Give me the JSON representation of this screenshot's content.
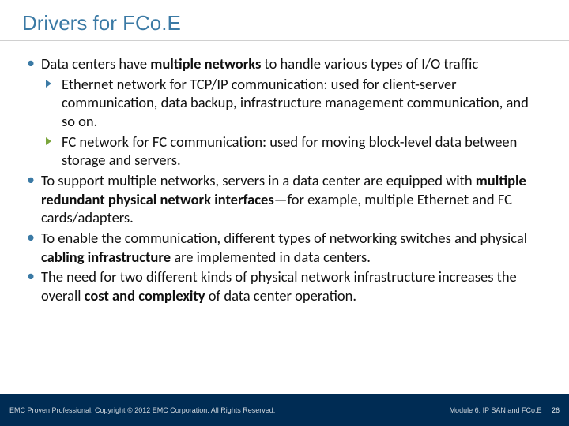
{
  "title": "Drivers for FCo.E",
  "colors": {
    "title": "#3b7aa5",
    "bullet_primary": "#3b7aa5",
    "sub_arrow_blue": "#3b7aa5",
    "sub_arrow_green": "#7aa53b",
    "footer_bg": "#002c54",
    "footer_text": "#cfd6dd",
    "body_text": "#111111",
    "divider": "#d0d0d0"
  },
  "typography": {
    "title_fontsize": 26,
    "body_fontsize": 18.5,
    "footer_fontsize": 9
  },
  "bullets": [
    {
      "runs": [
        {
          "t": "Data centers have "
        },
        {
          "t": "multiple networks",
          "b": true
        },
        {
          "t": " to handle various types of I/O traffic"
        }
      ],
      "sub": [
        {
          "color": "blue",
          "runs": [
            {
              "t": "Ethernet network for TCP/IP communication: used for client-server communication, data backup, infrastructure management communication, and so on."
            }
          ]
        },
        {
          "color": "green",
          "runs": [
            {
              "t": "FC network for FC communication: used for moving block-level data between storage and servers."
            }
          ]
        }
      ]
    },
    {
      "runs": [
        {
          "t": "To support multiple networks, servers in a data center are equipped with "
        },
        {
          "t": "multiple redundant physical network interfaces",
          "b": true
        },
        {
          "t": "—for example, multiple Ethernet and FC cards/adapters."
        }
      ]
    },
    {
      "runs": [
        {
          "t": "To enable the communication, different types of networking switches and physical "
        },
        {
          "t": "cabling infrastructure",
          "b": true
        },
        {
          "t": " are implemented in data centers."
        }
      ]
    },
    {
      "runs": [
        {
          "t": "The need for two different kinds of physical network infrastructure increases the overall "
        },
        {
          "t": "cost and complexity",
          "b": true
        },
        {
          "t": " of data center operation."
        }
      ]
    }
  ],
  "footer": {
    "left": "EMC Proven Professional. Copyright © 2012 EMC Corporation. All Rights Reserved.",
    "right_label": "Module 6: IP SAN and FCo.E",
    "page": "26"
  }
}
